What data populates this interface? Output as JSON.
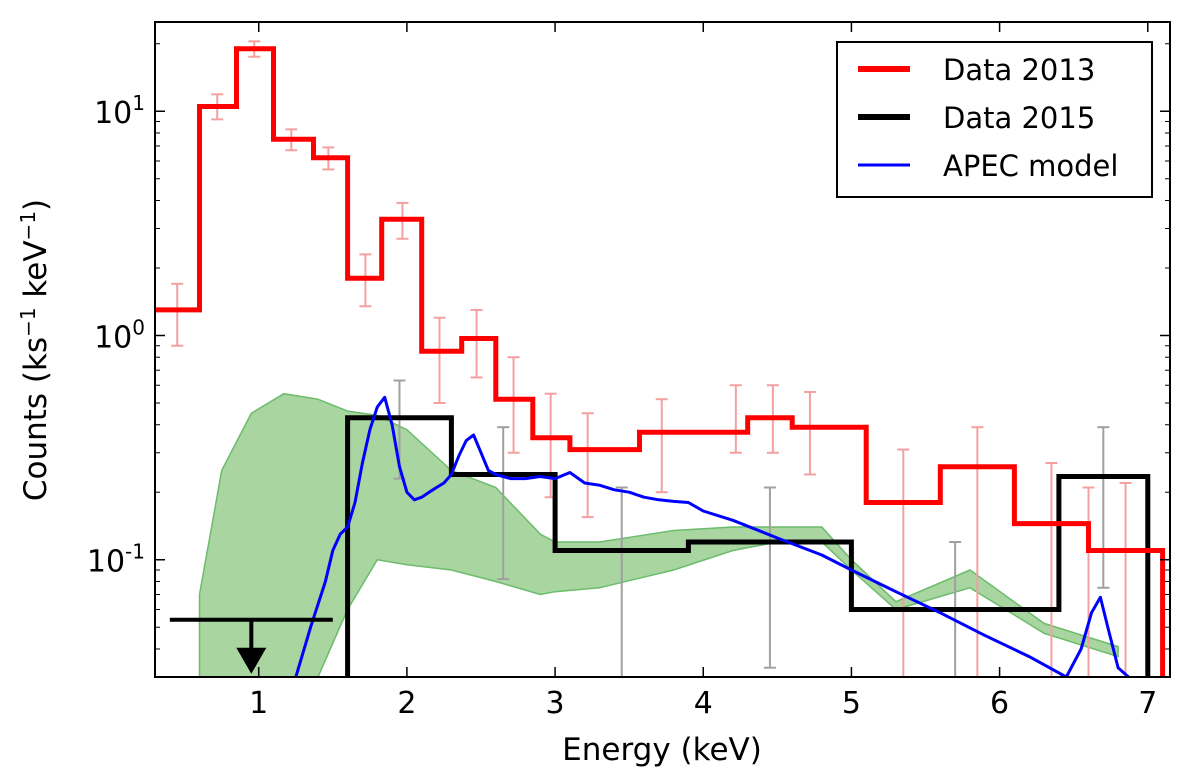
{
  "chart_data": {
    "type": "line",
    "title": "",
    "xlabel": "Energy (keV)",
    "ylabel": {
      "base": "Counts (ks",
      "exp1": "−1",
      "mid": " keV",
      "exp2": "−1",
      "end": ")"
    },
    "xlim": [
      0.3,
      7.15
    ],
    "ylim": [
      0.03,
      25
    ],
    "yscale": "log",
    "x_ticks": [
      {
        "value": 1,
        "label": "1"
      },
      {
        "value": 2,
        "label": "2"
      },
      {
        "value": 3,
        "label": "3"
      },
      {
        "value": 4,
        "label": "4"
      },
      {
        "value": 5,
        "label": "5"
      },
      {
        "value": 6,
        "label": "6"
      },
      {
        "value": 7,
        "label": "7"
      }
    ],
    "y_ticks": [
      {
        "value": 0.1,
        "base": "10",
        "exp": "-1"
      },
      {
        "value": 1,
        "base": "10",
        "exp": "0"
      },
      {
        "value": 10,
        "base": "10",
        "exp": "1"
      }
    ],
    "legend": {
      "position": "top-right",
      "entries": [
        {
          "label": "Data 2013",
          "color": "#ff0000"
        },
        {
          "label": "Data 2015",
          "color": "#000000"
        },
        {
          "label": "APEC model",
          "color": "#0000ff"
        }
      ]
    },
    "colors": {
      "data2013": "#ff0000",
      "data2013_err": "#f4a0a0",
      "data2015": "#000000",
      "data2015_err": "#a0a0a0",
      "apec": "#0000ff",
      "band_fill": "#a8d5a0",
      "band_edge": "#6cbc6c"
    },
    "series": [
      {
        "name": "Data 2013",
        "style": "step",
        "edges": [
          0.3,
          0.6,
          0.85,
          1.1,
          1.37,
          1.6,
          1.83,
          2.1,
          2.37,
          2.6,
          2.85,
          3.1,
          3.57,
          3.87,
          4.3,
          4.6,
          5.1,
          5.6,
          6.1,
          6.6,
          7.1
        ],
        "values": [
          1.3,
          10.5,
          19.0,
          7.5,
          6.2,
          1.8,
          3.3,
          0.85,
          0.97,
          0.52,
          0.35,
          0.31,
          0.37,
          0.37,
          0.43,
          0.39,
          0.18,
          0.26,
          0.145,
          0.11
        ],
        "err_x": [
          0.45,
          0.72,
          0.97,
          1.22,
          1.47,
          1.72,
          1.97,
          2.22,
          2.47,
          2.72,
          2.97,
          3.22,
          3.72,
          4.22,
          4.47,
          4.72,
          5.35,
          5.85,
          6.35,
          6.6,
          6.85
        ],
        "err_lo": [
          0.9,
          9.2,
          17.5,
          6.7,
          5.5,
          1.35,
          2.7,
          0.5,
          0.65,
          0.3,
          0.19,
          0.155,
          0.2,
          0.3,
          0.3,
          0.24,
          0.03,
          0.03,
          0.03,
          0.03,
          0.03
        ],
        "err_hi": [
          1.7,
          11.9,
          20.5,
          8.3,
          6.9,
          2.3,
          3.9,
          1.2,
          1.3,
          0.8,
          0.55,
          0.45,
          0.52,
          0.6,
          0.6,
          0.56,
          0.31,
          0.39,
          0.27,
          0.21,
          0.22
        ]
      },
      {
        "name": "Data 2015",
        "style": "step",
        "edges": [
          1.6,
          2.3,
          3.0,
          3.9,
          5.0,
          6.4,
          7.0
        ],
        "values": [
          0.43,
          0.24,
          0.11,
          0.12,
          0.06,
          0.235
        ],
        "err_x": [
          1.95,
          2.65,
          3.45,
          4.45,
          5.7,
          6.7
        ],
        "err_lo": [
          0.23,
          0.082,
          0.03,
          0.033,
          0.03,
          0.075
        ],
        "err_hi": [
          0.63,
          0.39,
          0.21,
          0.21,
          0.12,
          0.39
        ]
      },
      {
        "name": "APEC model",
        "style": "line",
        "x": [
          1.25,
          1.35,
          1.45,
          1.5,
          1.55,
          1.6,
          1.65,
          1.7,
          1.75,
          1.8,
          1.85,
          1.9,
          1.95,
          2.0,
          2.05,
          2.1,
          2.15,
          2.2,
          2.25,
          2.3,
          2.35,
          2.4,
          2.45,
          2.5,
          2.55,
          2.6,
          2.7,
          2.8,
          2.9,
          3.0,
          3.1,
          3.2,
          3.3,
          3.4,
          3.5,
          3.6,
          3.7,
          3.8,
          3.9,
          4.0,
          4.2,
          4.5,
          4.8,
          5.0,
          5.3,
          5.6,
          5.9,
          6.2,
          6.45,
          6.55,
          6.62,
          6.68,
          6.73,
          6.8,
          6.87
        ],
        "y": [
          0.03,
          0.05,
          0.08,
          0.11,
          0.13,
          0.14,
          0.18,
          0.27,
          0.38,
          0.48,
          0.53,
          0.4,
          0.26,
          0.2,
          0.185,
          0.19,
          0.2,
          0.21,
          0.22,
          0.24,
          0.29,
          0.34,
          0.36,
          0.3,
          0.25,
          0.24,
          0.23,
          0.23,
          0.235,
          0.23,
          0.245,
          0.22,
          0.215,
          0.205,
          0.2,
          0.19,
          0.185,
          0.182,
          0.18,
          0.165,
          0.15,
          0.125,
          0.105,
          0.09,
          0.072,
          0.058,
          0.046,
          0.037,
          0.03,
          0.04,
          0.058,
          0.068,
          0.05,
          0.033,
          0.03
        ]
      },
      {
        "name": "",
        "style": "band",
        "x": [
          0.6,
          0.75,
          0.95,
          1.17,
          1.4,
          1.6,
          1.8,
          2.0,
          2.3,
          2.6,
          2.9,
          3.0,
          3.3,
          3.8,
          4.2,
          4.5,
          4.8,
          5.0,
          5.3,
          5.8,
          6.3,
          6.8
        ],
        "upper": [
          0.07,
          0.25,
          0.45,
          0.55,
          0.52,
          0.46,
          0.44,
          0.38,
          0.25,
          0.21,
          0.13,
          0.12,
          0.12,
          0.135,
          0.14,
          0.14,
          0.14,
          0.1,
          0.065,
          0.09,
          0.052,
          0.041
        ],
        "lower": [
          0.03,
          0.03,
          0.03,
          0.03,
          0.03,
          0.06,
          0.1,
          0.095,
          0.09,
          0.08,
          0.07,
          0.072,
          0.075,
          0.09,
          0.11,
          0.12,
          0.12,
          0.09,
          0.06,
          0.075,
          0.047,
          0.037
        ]
      }
    ],
    "upper_limit": {
      "x_from": 0.4,
      "x_to": 1.5,
      "arrow_x": 0.95,
      "y": 0.054
    }
  }
}
